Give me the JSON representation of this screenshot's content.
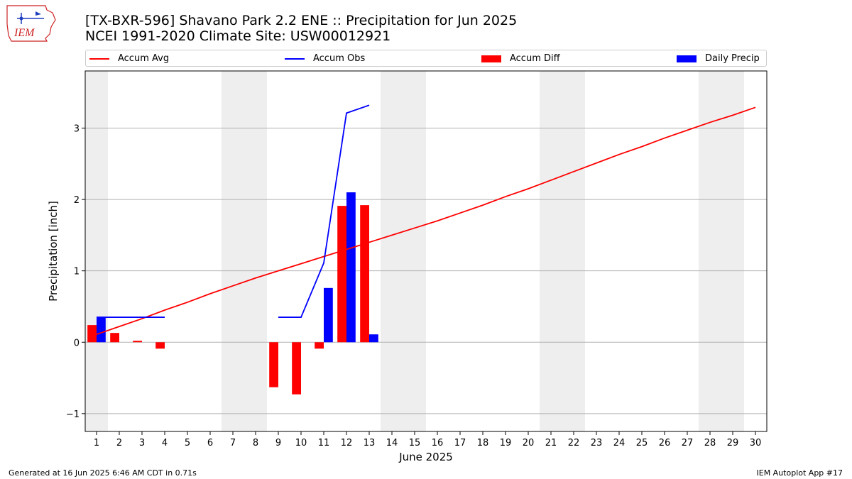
{
  "title_line1": "[TX-BXR-596] Shavano Park 2.2 ENE :: Precipitation for Jun 2025",
  "title_line2": "NCEI 1991-2020 Climate Site: USW00012921",
  "logo_text": "IEM",
  "footer_left": "Generated at 16 Jun 2025 6:46 AM CDT in 0.71s",
  "footer_right": "IEM Autoplot App #17",
  "colors": {
    "avg": "#ff0000",
    "obs": "#0000ff",
    "diff": "#ff0000",
    "daily": "#0000ff",
    "weekend": "#eeeeee",
    "grid": "#b0b0b0",
    "logo_red": "#cc2222",
    "logo_blue": "#1f3fbf"
  },
  "legend": [
    {
      "label": "Accum Avg",
      "kind": "line",
      "color": "#ff0000"
    },
    {
      "label": "Accum Obs",
      "kind": "line",
      "color": "#0000ff"
    },
    {
      "label": "Accum Diff",
      "kind": "patch",
      "color": "#ff0000"
    },
    {
      "label": "Daily Precip",
      "kind": "patch",
      "color": "#0000ff"
    }
  ],
  "chart_data": {
    "type": "bar",
    "xlabel": "June 2025",
    "ylabel": "Precipitation [inch]",
    "xlim": [
      0.5,
      30.5
    ],
    "ylim": [
      -1.25,
      3.8
    ],
    "x_ticks": [
      1,
      2,
      3,
      4,
      5,
      6,
      7,
      8,
      9,
      10,
      11,
      12,
      13,
      14,
      15,
      16,
      17,
      18,
      19,
      20,
      21,
      22,
      23,
      24,
      25,
      26,
      27,
      28,
      29,
      30
    ],
    "y_ticks": [
      -1,
      0,
      1,
      2,
      3
    ],
    "y_tick_labels": [
      "−1",
      "0",
      "1",
      "2",
      "3"
    ],
    "grid": "y",
    "weekend_shading": [
      [
        1,
        1
      ],
      [
        7,
        8
      ],
      [
        14,
        15
      ],
      [
        21,
        22
      ],
      [
        28,
        29
      ]
    ],
    "accum_avg": {
      "name": "Accum Avg",
      "x": [
        1,
        2,
        3,
        4,
        5,
        6,
        7,
        8,
        9,
        10,
        11,
        12,
        13,
        14,
        15,
        16,
        17,
        18,
        19,
        20,
        21,
        22,
        23,
        24,
        25,
        26,
        27,
        28,
        29,
        30
      ],
      "values": [
        0.11,
        0.22,
        0.33,
        0.45,
        0.56,
        0.68,
        0.79,
        0.9,
        1.0,
        1.1,
        1.2,
        1.3,
        1.4,
        1.5,
        1.6,
        1.7,
        1.81,
        1.92,
        2.04,
        2.15,
        2.27,
        2.39,
        2.51,
        2.63,
        2.74,
        2.86,
        2.97,
        3.08,
        3.18,
        3.29
      ]
    },
    "accum_obs": {
      "name": "Accum Obs",
      "segments": [
        {
          "x": [
            1,
            2,
            3,
            4
          ],
          "values": [
            0.35,
            0.35,
            0.35,
            0.35
          ]
        },
        {
          "x": [
            9,
            10,
            11,
            12,
            13
          ],
          "values": [
            0.35,
            0.35,
            1.11,
            3.21,
            3.32
          ]
        }
      ]
    },
    "accum_diff": {
      "name": "Accum Diff",
      "x": [
        1,
        2,
        3,
        4,
        9,
        10,
        11,
        12,
        13
      ],
      "values": [
        0.24,
        0.13,
        0.02,
        -0.09,
        -0.63,
        -0.73,
        -0.09,
        1.91,
        1.92
      ]
    },
    "daily_precip": {
      "name": "Daily Precip",
      "x": [
        1,
        11,
        12,
        13
      ],
      "values": [
        0.35,
        0.76,
        2.1,
        0.11
      ]
    }
  }
}
